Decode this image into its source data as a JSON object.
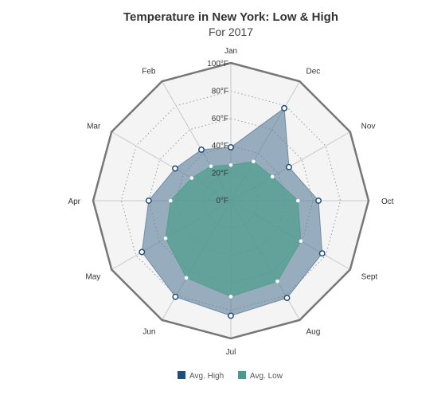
{
  "chart_data": {
    "type": "radar",
    "title": "Temperature in New York: Low & High",
    "subtitle": "For 2017",
    "categories": [
      "Jan",
      "Dec",
      "Nov",
      "Oct",
      "Sept",
      "Aug",
      "Jul",
      "Jun",
      "May",
      "Apr",
      "Mar",
      "Feb"
    ],
    "radial_ticks": [
      "0°F",
      "20°F",
      "40°F",
      "60°F",
      "80°F",
      "100°F"
    ],
    "rlim": [
      0,
      100
    ],
    "series": [
      {
        "name": "Avg. High",
        "color": "#1f4e79",
        "values": [
          39,
          78,
          49,
          64,
          77,
          82,
          84,
          81,
          75,
          60,
          47,
          43
        ]
      },
      {
        "name": "Avg. Low",
        "color": "#4a9a8e",
        "values": [
          26,
          33,
          35,
          49,
          59,
          68,
          70,
          65,
          55,
          44,
          33,
          29
        ]
      }
    ],
    "legend": "bottom-center"
  }
}
